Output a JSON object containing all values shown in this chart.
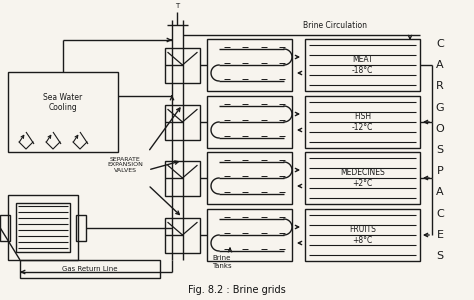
{
  "title": "Fig. 8.2 : Brine grids",
  "background_color": "#f7f4ee",
  "line_color": "#1a1a1a",
  "grid_labels": [
    "MEAT\n-18°C",
    "FISH\n-12°C",
    "MEDECINES\n+2°C",
    "FRUITS\n+8°C"
  ],
  "side_letters": [
    "C",
    "A",
    "R",
    "G",
    "O",
    "S",
    "P",
    "A",
    "C",
    "E",
    "S"
  ],
  "seawater_label": "Sea Water\nCooling",
  "separate_expansion": "SEPARATE\nEXPANSION\nVALVES",
  "brine_circulation": "Brine Circulation",
  "gas_return": "Gas Return Line",
  "brine_tanks": "Brine\nTanks"
}
